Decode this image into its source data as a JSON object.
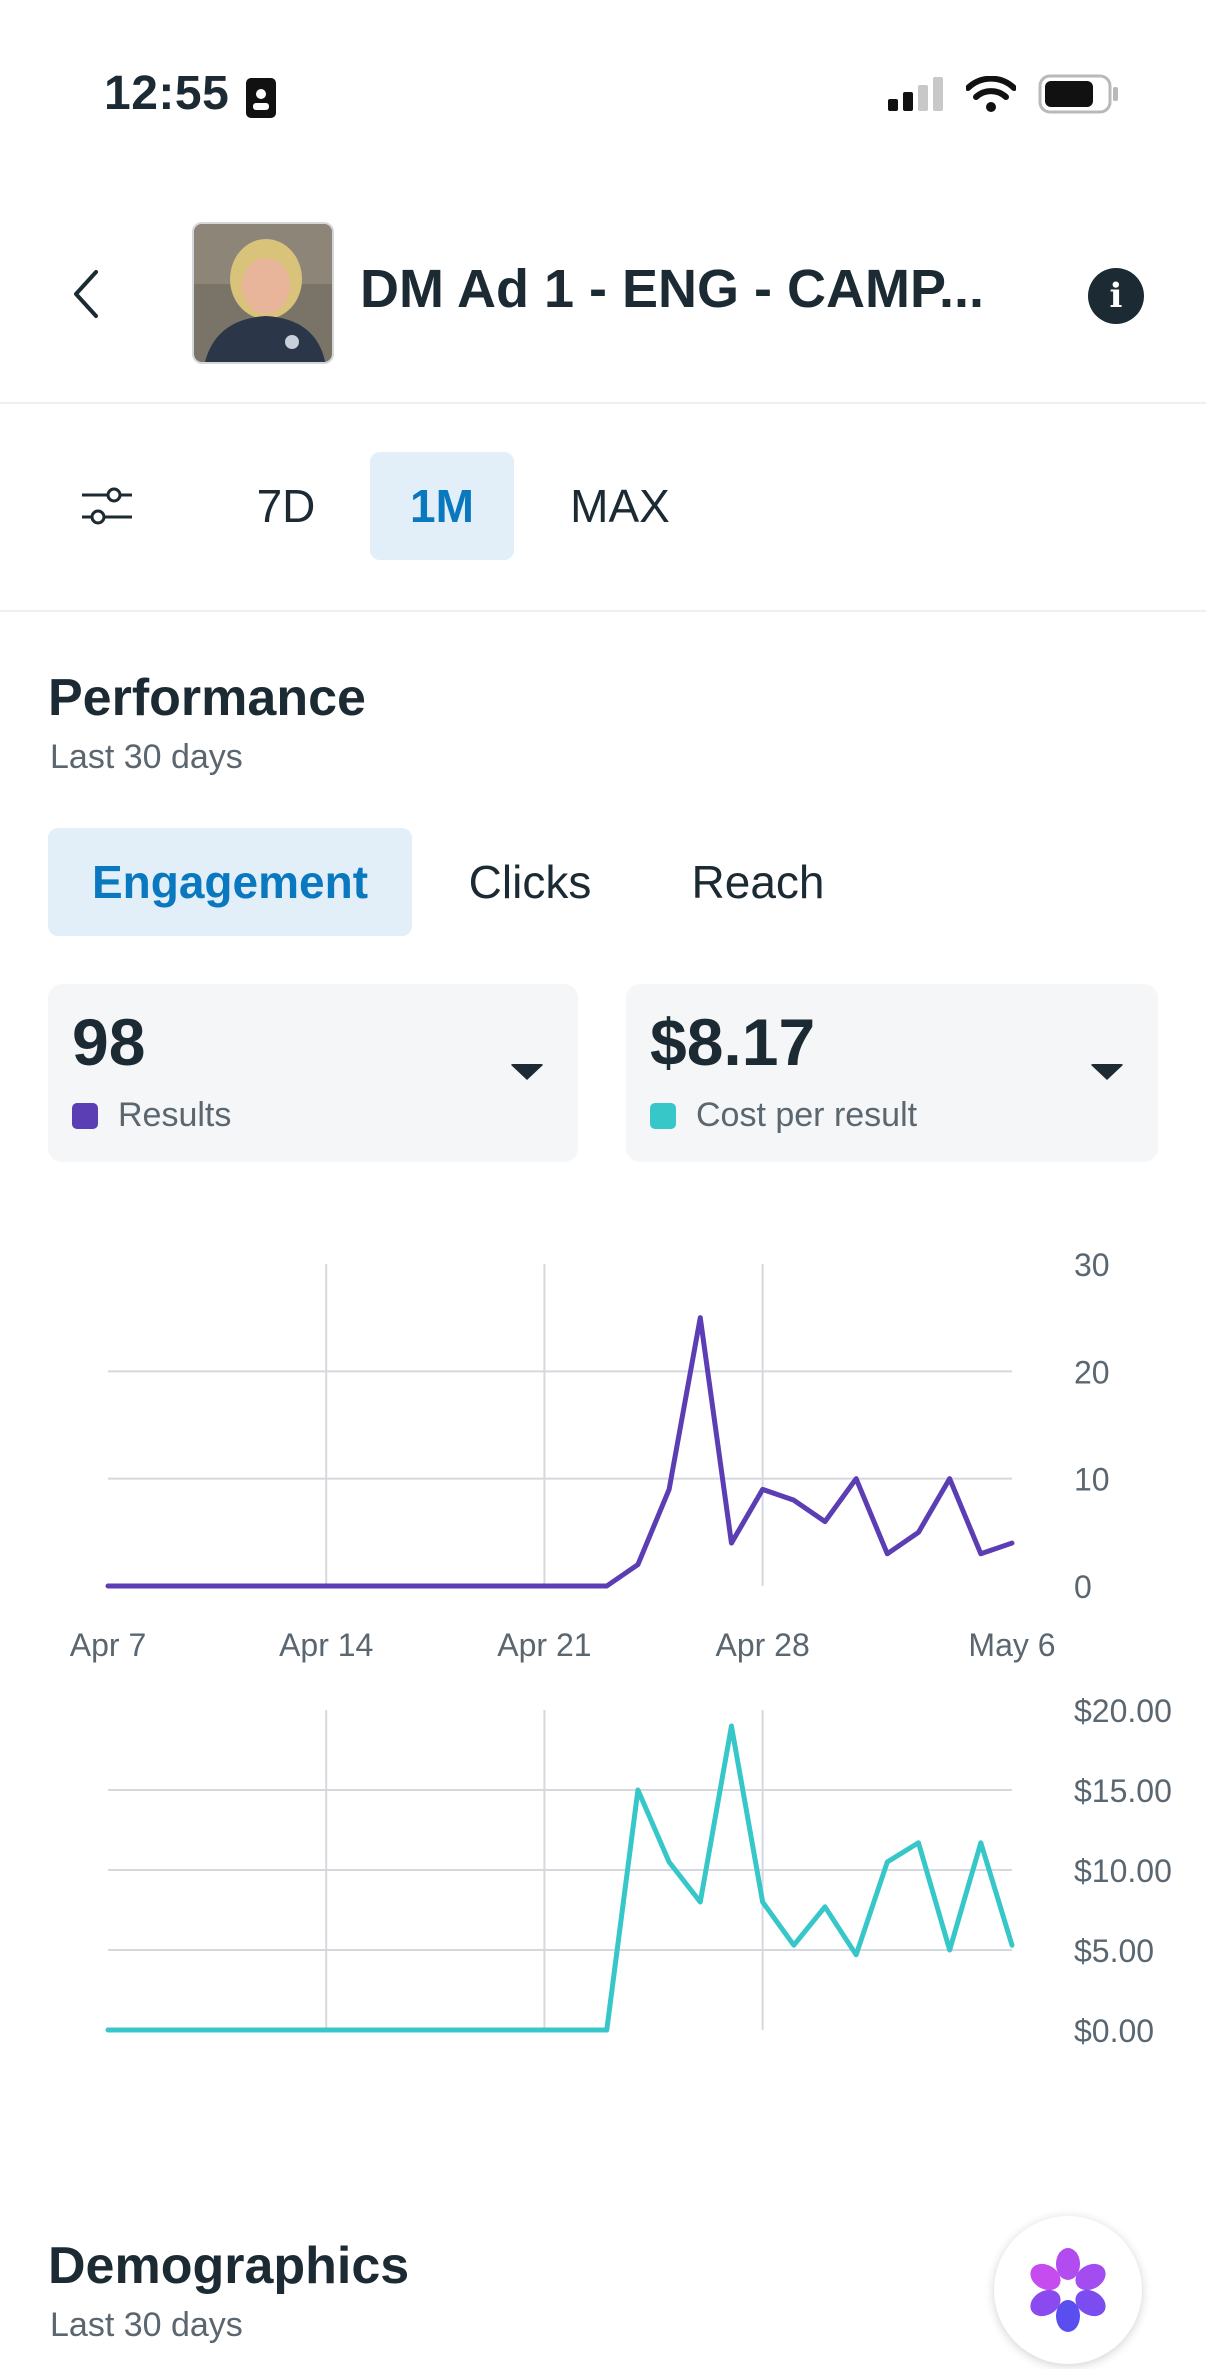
{
  "status_bar": {
    "time": "12:55"
  },
  "header": {
    "title": "DM Ad 1 - ENG - CAMP..."
  },
  "range_tabs": [
    {
      "label": "7D",
      "active": false
    },
    {
      "label": "1M",
      "active": true
    },
    {
      "label": "MAX",
      "active": false
    }
  ],
  "performance": {
    "title": "Performance",
    "subtitle": "Last 30 days",
    "tabs": [
      {
        "label": "Engagement",
        "active": true
      },
      {
        "label": "Clicks",
        "active": false
      },
      {
        "label": "Reach",
        "active": false
      }
    ],
    "cards": [
      {
        "value": "98",
        "label": "Results",
        "color": "#5b3db4"
      },
      {
        "value": "$8.17",
        "label": "Cost per result",
        "color": "#37c7c9"
      }
    ]
  },
  "chart_data": [
    {
      "type": "line",
      "x": [
        "Apr 7",
        "Apr 8",
        "Apr 9",
        "Apr 10",
        "Apr 11",
        "Apr 12",
        "Apr 13",
        "Apr 14",
        "Apr 15",
        "Apr 16",
        "Apr 17",
        "Apr 18",
        "Apr 19",
        "Apr 20",
        "Apr 21",
        "Apr 22",
        "Apr 23",
        "Apr 24",
        "Apr 25",
        "Apr 26",
        "Apr 27",
        "Apr 28",
        "Apr 29",
        "Apr 30",
        "May 1",
        "May 2",
        "May 3",
        "May 4",
        "May 5",
        "May 6"
      ],
      "series": [
        {
          "name": "Results",
          "color": "#5b3db4",
          "values": [
            0,
            0,
            0,
            0,
            0,
            0,
            0,
            0,
            0,
            0,
            0,
            0,
            0,
            0,
            0,
            0,
            0,
            2,
            9,
            25,
            4,
            9,
            8,
            6,
            10,
            3,
            5,
            10,
            3,
            4
          ]
        }
      ],
      "tick_labels_x": [
        "Apr 7",
        "Apr 14",
        "Apr 21",
        "Apr 28",
        "May 6"
      ],
      "tick_labels_y": [
        "30",
        "20",
        "10",
        "0"
      ],
      "ylim": [
        0,
        30
      ],
      "grid": true,
      "y_axis_side": "right"
    },
    {
      "type": "line",
      "x": [
        "Apr 7",
        "Apr 8",
        "Apr 9",
        "Apr 10",
        "Apr 11",
        "Apr 12",
        "Apr 13",
        "Apr 14",
        "Apr 15",
        "Apr 16",
        "Apr 17",
        "Apr 18",
        "Apr 19",
        "Apr 20",
        "Apr 21",
        "Apr 22",
        "Apr 23",
        "Apr 24",
        "Apr 25",
        "Apr 26",
        "Apr 27",
        "Apr 28",
        "Apr 29",
        "Apr 30",
        "May 1",
        "May 2",
        "May 3",
        "May 4",
        "May 5",
        "May 6"
      ],
      "series": [
        {
          "name": "Cost per result",
          "color": "#37c7c9",
          "values": [
            0,
            0,
            0,
            0,
            0,
            0,
            0,
            0,
            0,
            0,
            0,
            0,
            0,
            0,
            0,
            0,
            0,
            15,
            10.5,
            8,
            19,
            8,
            5.3,
            7.7,
            4.7,
            10.5,
            11.7,
            5,
            11.7,
            5.3
          ]
        }
      ],
      "tick_labels_y": [
        "$20.00",
        "$15.00",
        "$10.00",
        "$5.00",
        "$0.00"
      ],
      "ylim": [
        0,
        20
      ],
      "grid": true,
      "y_axis_side": "right"
    }
  ],
  "demographics": {
    "title": "Demographics",
    "subtitle": "Last 30 days"
  },
  "icons": {
    "back": "chevron-left-icon",
    "info": "info-icon",
    "filter": "sliders-icon",
    "assistant": "ai-assistant-icon"
  }
}
